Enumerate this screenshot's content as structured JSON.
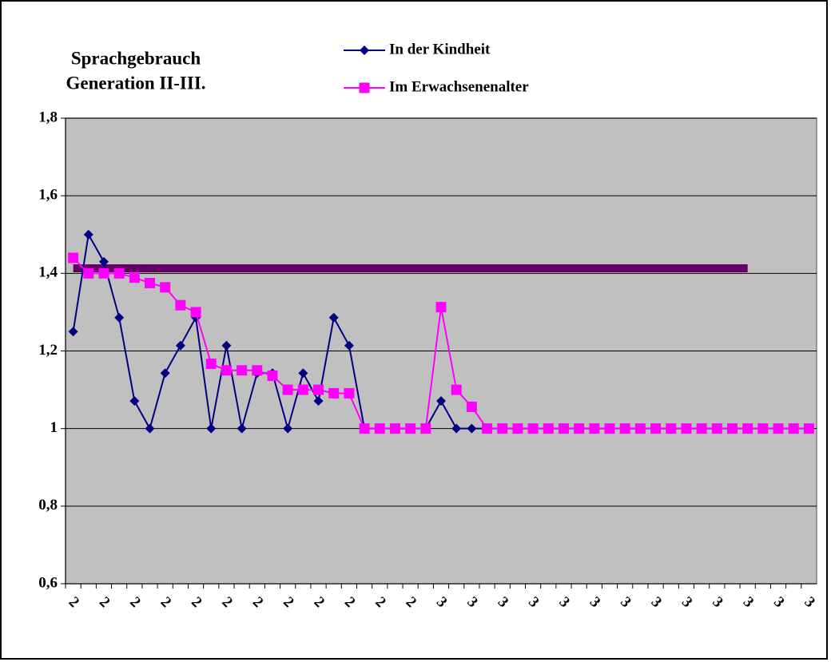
{
  "chart_data": {
    "type": "line",
    "title": [
      "Sprachgebrauch",
      "Generation II-III."
    ],
    "categories": [
      "2",
      null,
      "2",
      null,
      "2",
      null,
      "2",
      null,
      "2",
      null,
      "2",
      null,
      "2",
      null,
      "2",
      null,
      "2",
      null,
      "2",
      null,
      "2",
      null,
      "2",
      null,
      "3",
      null,
      "3",
      null,
      "3",
      null,
      "3",
      null,
      "3",
      null,
      "3",
      null,
      "3",
      null,
      "3",
      null,
      "3",
      null,
      "3",
      null,
      "3",
      null,
      "3",
      null,
      "3"
    ],
    "series": [
      {
        "name": "In der Kindheit",
        "color": "#000080",
        "values": [
          1.25,
          1.5,
          1.43,
          1.286,
          1.071,
          1.0,
          1.143,
          1.214,
          1.286,
          1.0,
          1.214,
          1.0,
          1.143,
          1.143,
          1.0,
          1.143,
          1.071,
          1.286,
          1.214,
          1.0,
          1.0,
          1.0,
          1.0,
          1.0,
          1.071,
          1.0,
          1.0,
          1.0,
          1.0,
          1.0,
          1.0,
          1.0,
          1.0,
          1.0,
          1.0,
          1.0,
          1.0,
          1.0,
          1.0,
          1.0,
          1.0,
          1.0,
          1.0,
          1.0,
          1.0,
          1.0,
          1.0,
          1.0,
          1.0
        ]
      },
      {
        "name": "Im Erwachsenenalter",
        "color": "#ff00ff",
        "values": [
          1.44,
          1.4,
          1.4,
          1.4,
          1.389,
          1.375,
          1.364,
          1.318,
          1.3,
          1.167,
          1.15,
          1.15,
          1.15,
          1.136,
          1.1,
          1.1,
          1.1,
          1.091,
          1.091,
          1.0,
          1.0,
          1.0,
          1.0,
          1.0,
          1.313,
          1.1,
          1.056,
          1.0,
          1.0,
          1.0,
          1.0,
          1.0,
          1.0,
          1.0,
          1.0,
          1.0,
          1.0,
          1.0,
          1.0,
          1.0,
          1.0,
          1.0,
          1.0,
          1.0,
          1.0,
          1.0,
          1.0,
          1.0,
          1.0
        ]
      },
      {
        "color": "#660066",
        "values": [
          1.413,
          1.413,
          1.413,
          1.413,
          1.413,
          1.413,
          1.413,
          1.413,
          1.413,
          1.413,
          1.413,
          1.413,
          1.413,
          1.413,
          1.413,
          1.413,
          1.413,
          1.413,
          1.413,
          1.413,
          1.413,
          1.413,
          1.413,
          1.413,
          1.413,
          1.413,
          1.413,
          1.413,
          1.413,
          1.413,
          1.413,
          1.413,
          1.413,
          1.413,
          1.413,
          1.413,
          1.413,
          1.413,
          1.413,
          1.413,
          1.413,
          1.413,
          1.413,
          1.413,
          1.413,
          null,
          null,
          null,
          null
        ]
      }
    ],
    "ylim": [
      0.6,
      1.8
    ],
    "yticks": [
      {
        "value": 0.6,
        "label": "0,6"
      },
      {
        "value": 0.8,
        "label": "0,8"
      },
      1,
      {
        "value": 1.2,
        "label": "1,2"
      },
      {
        "value": 1.4,
        "label": "1,4"
      },
      {
        "value": 1.6,
        "label": "1,6"
      },
      {
        "value": 1.8,
        "label": "1,8"
      }
    ],
    "grid": true,
    "plot_background": "#c0c0c0"
  }
}
